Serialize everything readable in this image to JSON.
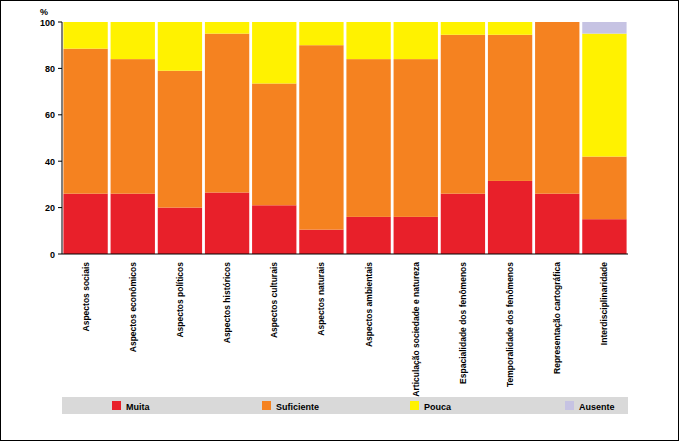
{
  "chart_data": {
    "type": "bar",
    "stacked": true,
    "legend": "bottom",
    "y_label": "%",
    "categories": [
      "Aspectos sociais",
      "Aspectos econômicos",
      "Aspectos políticos",
      "Aspectos históricos",
      "Aspectos culturais",
      "Aspectos naturais",
      "Aspectos ambientais",
      "Articulação sociedade e natureza",
      "Espacialidade dos fenômenos",
      "Temporalidade dos fenômenos",
      "Representação cartográfica",
      "Interdisciplinaridade"
    ],
    "series": [
      {
        "name": "Muita",
        "color": "#e8202a",
        "values": [
          26,
          26,
          20,
          26.5,
          21,
          10.5,
          16,
          16,
          26,
          31.5,
          26,
          15
        ]
      },
      {
        "name": "Suficiente",
        "color": "#f58220",
        "values": [
          62.5,
          58,
          59,
          68.5,
          52.5,
          79.5,
          68,
          68,
          68.5,
          63,
          74,
          27
        ]
      },
      {
        "name": "Pouca",
        "color": "#fff200",
        "values": [
          11.5,
          16,
          21,
          5,
          26.5,
          10,
          16,
          16,
          5.5,
          5.5,
          0,
          53
        ]
      },
      {
        "name": "Ausente",
        "color": "#c6c3e3",
        "values": [
          0,
          0,
          0,
          0,
          0,
          0,
          0,
          0,
          0,
          0,
          0,
          5
        ]
      }
    ],
    "ylim": [
      0,
      100
    ],
    "yticks": [
      0,
      20,
      40,
      60,
      80,
      100
    ],
    "grid": false
  }
}
